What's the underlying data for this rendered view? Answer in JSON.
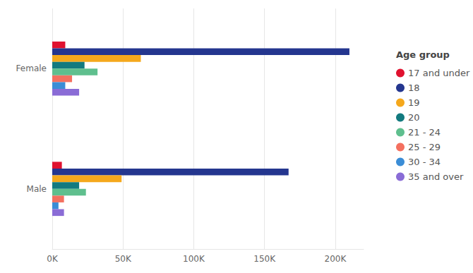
{
  "chart_data": {
    "type": "bar",
    "orientation": "horizontal",
    "categories": [
      "Female",
      "Male"
    ],
    "legend_title": "Age group",
    "legend": "right",
    "grid": true,
    "xlim": [
      0,
      220000
    ],
    "xticks": [
      {
        "value": 0,
        "label": "0K"
      },
      {
        "value": 50000,
        "label": "50K"
      },
      {
        "value": 100000,
        "label": "100K"
      },
      {
        "value": 150000,
        "label": "150K"
      },
      {
        "value": 200000,
        "label": "200K"
      }
    ],
    "series": [
      {
        "name": "17 and under",
        "color": "#e0122f",
        "values": [
          9200,
          6800
        ]
      },
      {
        "name": "18",
        "color": "#24368f",
        "values": [
          210000,
          167000
        ]
      },
      {
        "name": "19",
        "color": "#f5a81c",
        "values": [
          62600,
          49000
        ]
      },
      {
        "name": "20",
        "color": "#137a7f",
        "values": [
          22800,
          19000
        ]
      },
      {
        "name": "21 - 24",
        "color": "#5fbf8e",
        "values": [
          32000,
          23800
        ]
      },
      {
        "name": "25 - 29",
        "color": "#f4705f",
        "values": [
          14000,
          8300
        ]
      },
      {
        "name": "30 - 34",
        "color": "#3b8dd6",
        "values": [
          9200,
          4400
        ]
      },
      {
        "name": "35 and over",
        "color": "#8a6cd6",
        "values": [
          19000,
          8300
        ]
      }
    ]
  }
}
